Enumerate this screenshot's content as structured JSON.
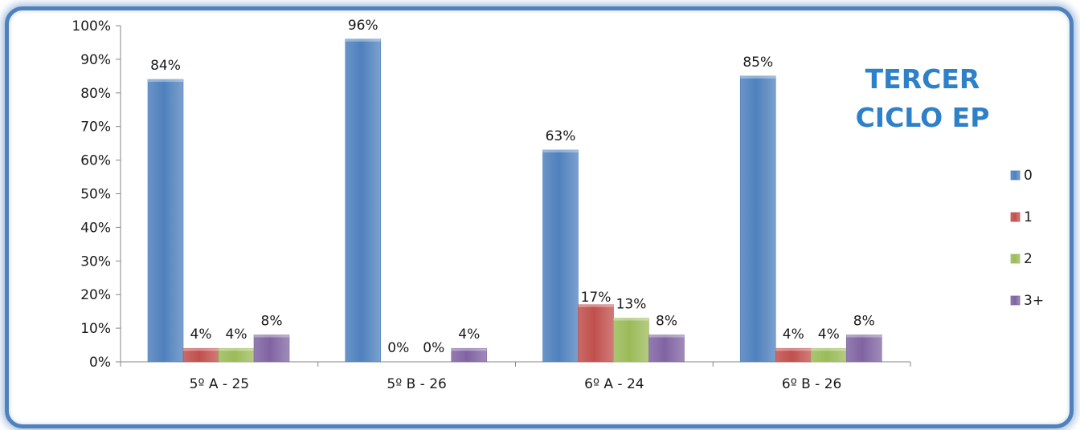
{
  "chart_data": {
    "type": "bar",
    "title_lines": [
      "TERCER",
      "CICLO EP"
    ],
    "categories": [
      "5º A - 25",
      "5º B - 26",
      "6º A - 24",
      "6º B - 26"
    ],
    "ylim": [
      0,
      100
    ],
    "yticks": [
      "0%",
      "10%",
      "20%",
      "30%",
      "40%",
      "50%",
      "60%",
      "70%",
      "80%",
      "90%",
      "100%"
    ],
    "legend_position": "right",
    "series": [
      {
        "name": "0",
        "color": "#4f81bd",
        "values": [
          84,
          96,
          63,
          85
        ],
        "labels": [
          "84%",
          "96%",
          "63%",
          "85%"
        ]
      },
      {
        "name": "1",
        "color": "#c0504d",
        "values": [
          4,
          0,
          17,
          4
        ],
        "labels": [
          "4%",
          "0%",
          "17%",
          "4%"
        ]
      },
      {
        "name": "2",
        "color": "#9bbb59",
        "values": [
          4,
          0,
          13,
          4
        ],
        "labels": [
          "4%",
          "0%",
          "13%",
          "4%"
        ]
      },
      {
        "name": "3+",
        "color": "#8064a2",
        "values": [
          8,
          4,
          8,
          8
        ],
        "labels": [
          "8%",
          "4%",
          "8%",
          "8%"
        ]
      }
    ]
  }
}
